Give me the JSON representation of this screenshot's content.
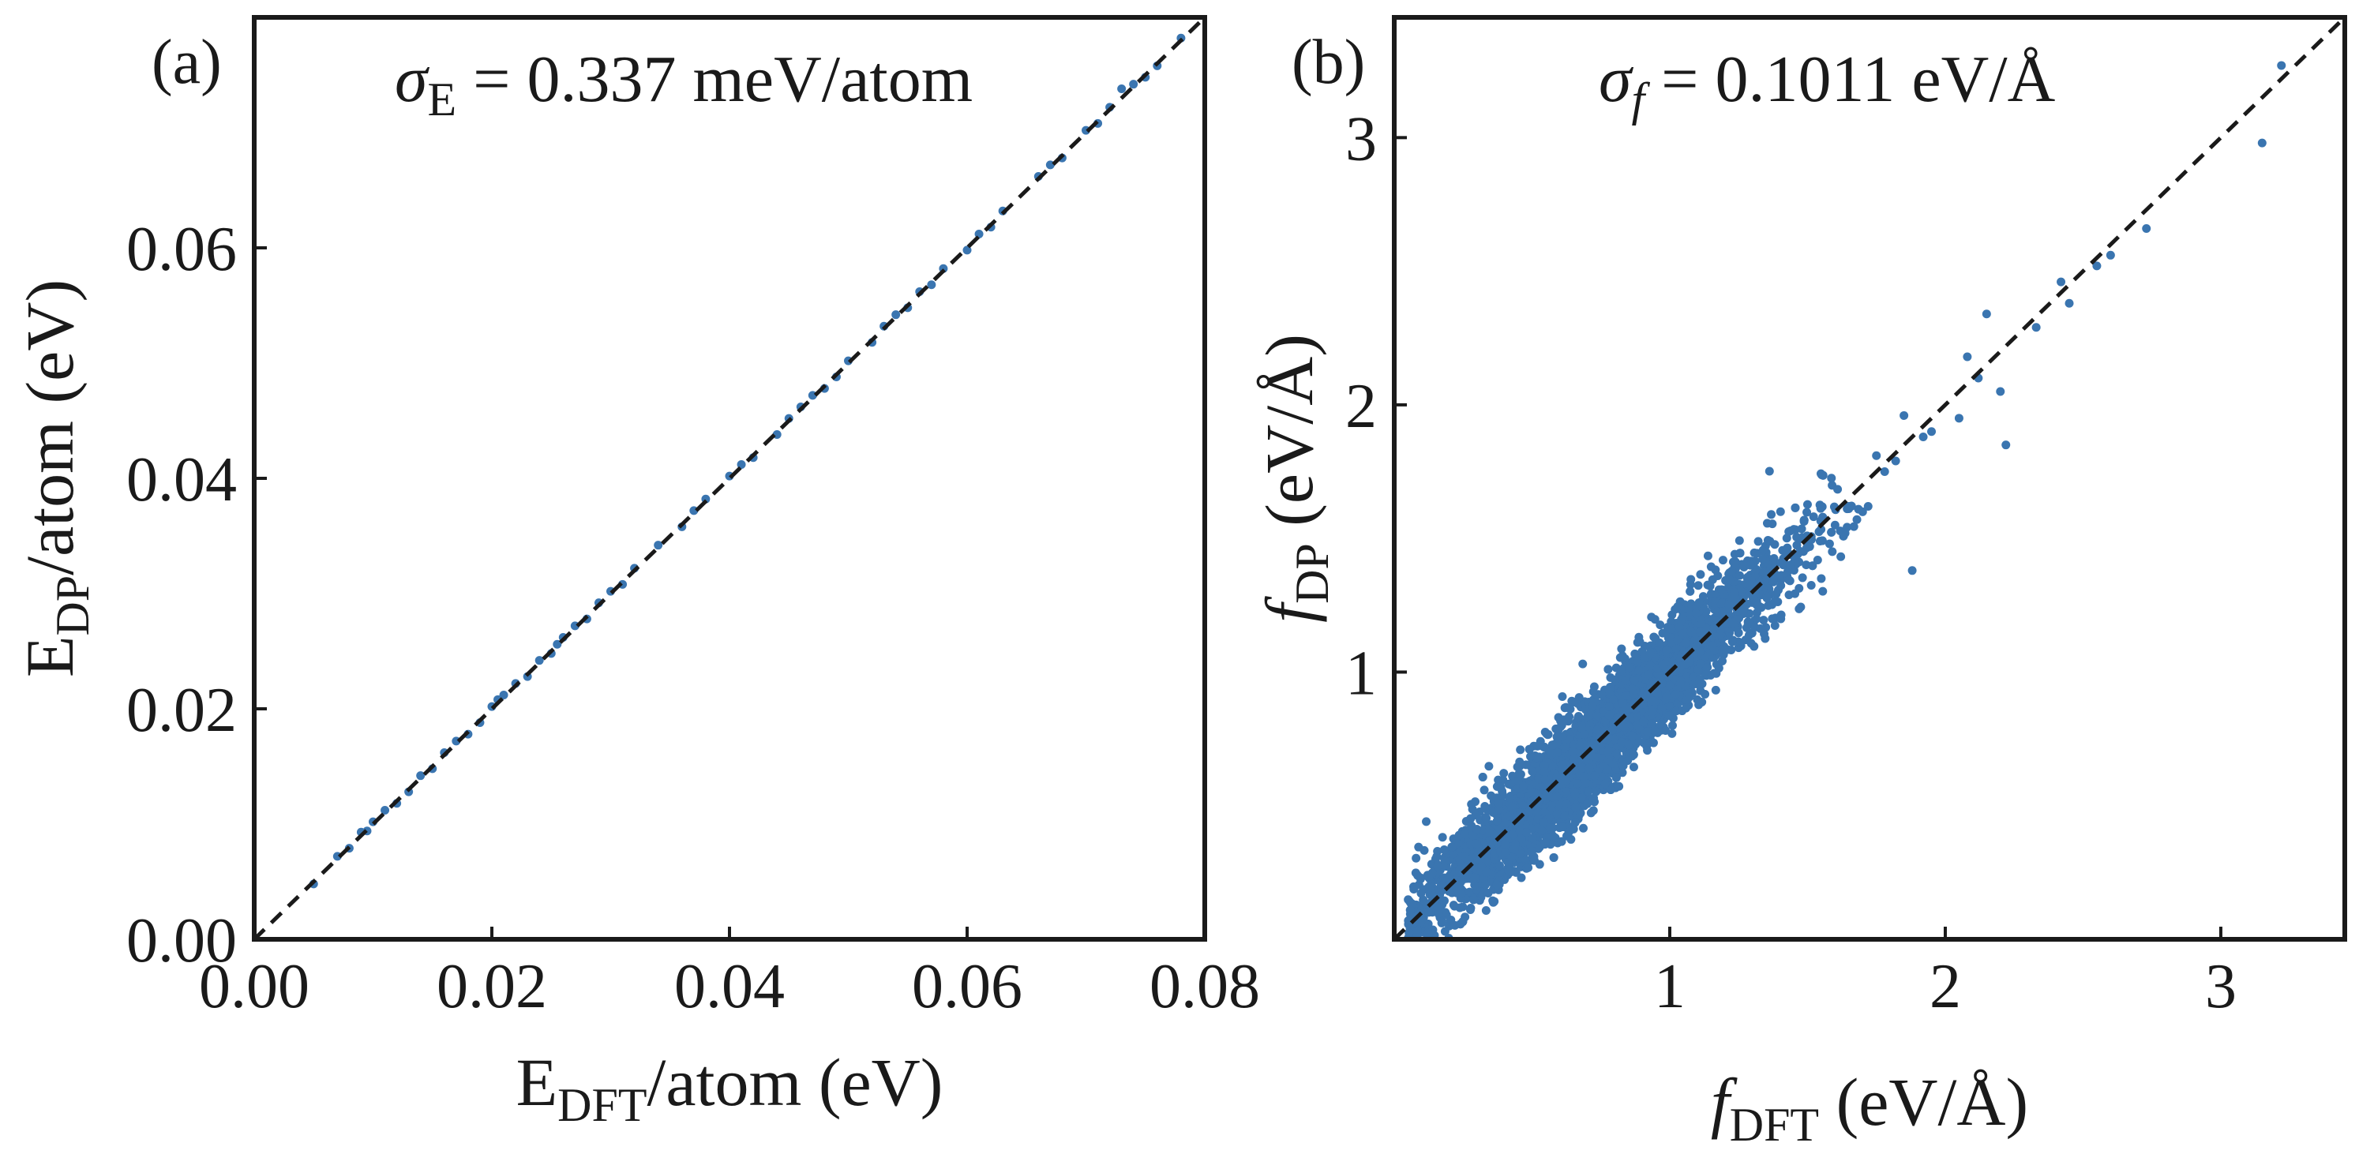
{
  "chart_data": [
    {
      "type": "scatter",
      "panel_label": "(a)",
      "annotation": {
        "symbol": "σ",
        "subscript": "E",
        "text": " = 0.337 meV/atom"
      },
      "xlabel": {
        "main": "E",
        "subscript": "DFT",
        "rest": "/atom (eV)"
      },
      "ylabel": {
        "main": "E",
        "subscript": "DP",
        "rest": "/atom (eV)"
      },
      "xlim": [
        0,
        0.08
      ],
      "ylim": [
        0,
        0.08
      ],
      "xticks": [
        0.0,
        0.02,
        0.04,
        0.06,
        0.08
      ],
      "xtick_labels": [
        "0.00",
        "0.02",
        "0.04",
        "0.06",
        "0.08"
      ],
      "yticks": [
        0.0,
        0.02,
        0.04,
        0.06
      ],
      "ytick_labels": [
        "0.00",
        "0.02",
        "0.04",
        "0.06"
      ],
      "reference_line": "y = x (dashed)",
      "marker_color": "#3a75b0",
      "line_color": "#1a1a1a",
      "points": {
        "x": [
          0.005,
          0.007,
          0.008,
          0.009,
          0.0095,
          0.01,
          0.011,
          0.012,
          0.013,
          0.014,
          0.015,
          0.016,
          0.017,
          0.018,
          0.019,
          0.02,
          0.0205,
          0.021,
          0.022,
          0.023,
          0.024,
          0.025,
          0.0255,
          0.026,
          0.027,
          0.028,
          0.029,
          0.03,
          0.031,
          0.032,
          0.034,
          0.036,
          0.037,
          0.038,
          0.04,
          0.041,
          0.042,
          0.044,
          0.045,
          0.046,
          0.047,
          0.048,
          0.049,
          0.05,
          0.052,
          0.053,
          0.054,
          0.055,
          0.056,
          0.057,
          0.058,
          0.06,
          0.061,
          0.062,
          0.063,
          0.066,
          0.067,
          0.068,
          0.07,
          0.071,
          0.072,
          0.073,
          0.074,
          0.075,
          0.076,
          0.078
        ],
        "y": [
          0.0048,
          0.0072,
          0.0079,
          0.0093,
          0.0094,
          0.0102,
          0.0112,
          0.0118,
          0.0128,
          0.0142,
          0.0148,
          0.0162,
          0.0172,
          0.0178,
          0.0188,
          0.0202,
          0.0208,
          0.0212,
          0.0222,
          0.0228,
          0.0242,
          0.0248,
          0.0256,
          0.0262,
          0.0272,
          0.0278,
          0.0292,
          0.0302,
          0.0308,
          0.0322,
          0.0342,
          0.0358,
          0.0372,
          0.0382,
          0.0402,
          0.0412,
          0.0418,
          0.0438,
          0.0452,
          0.0462,
          0.0472,
          0.0478,
          0.0488,
          0.0502,
          0.0518,
          0.0532,
          0.0542,
          0.0548,
          0.0562,
          0.0568,
          0.0582,
          0.0598,
          0.0612,
          0.0618,
          0.0632,
          0.0662,
          0.0672,
          0.0678,
          0.0702,
          0.0708,
          0.0722,
          0.0738,
          0.0742,
          0.0748,
          0.0758,
          0.0782
        ]
      }
    },
    {
      "type": "scatter",
      "panel_label": "(b)",
      "annotation": {
        "symbol": "σ",
        "subscript": "f",
        "text": " = 0.1011 eV/Å"
      },
      "xlabel": {
        "main": "f",
        "subscript": "DFT",
        "rest": " (eV/Å)"
      },
      "ylabel": {
        "main": "f",
        "subscript": "DP",
        "rest": " (eV/Å)"
      },
      "xlim": [
        0.0,
        3.45
      ],
      "ylim": [
        0.0,
        3.45
      ],
      "xticks": [
        1,
        2,
        3
      ],
      "xtick_labels": [
        "1",
        "2",
        "3"
      ],
      "yticks": [
        1,
        2,
        3
      ],
      "ytick_labels": [
        "1",
        "2",
        "3"
      ],
      "reference_line": "y = x (dashed)",
      "marker_color": "#3a75b0",
      "line_color": "#1a1a1a",
      "cloud": {
        "n_points": 4500,
        "x_range": [
          0.05,
          1.7
        ],
        "scatter_sd": 0.1011
      },
      "outliers": {
        "x": [
          3.22,
          3.15,
          2.73,
          2.6,
          2.55,
          2.45,
          2.42,
          2.33,
          2.22,
          2.2,
          2.15,
          2.12,
          2.08,
          2.05,
          1.95,
          1.92,
          1.88,
          1.85,
          1.82,
          1.78,
          1.75,
          1.72,
          1.7,
          1.65,
          1.6,
          1.58,
          1.55,
          1.0
        ],
        "y": [
          3.27,
          2.98,
          2.66,
          2.56,
          2.52,
          2.38,
          2.46,
          2.29,
          1.85,
          2.05,
          2.34,
          2.1,
          2.18,
          1.95,
          1.9,
          1.88,
          1.38,
          1.96,
          1.79,
          1.75,
          1.81,
          1.62,
          1.6,
          1.62,
          1.55,
          1.48,
          1.35,
          0.95
        ]
      }
    }
  ]
}
